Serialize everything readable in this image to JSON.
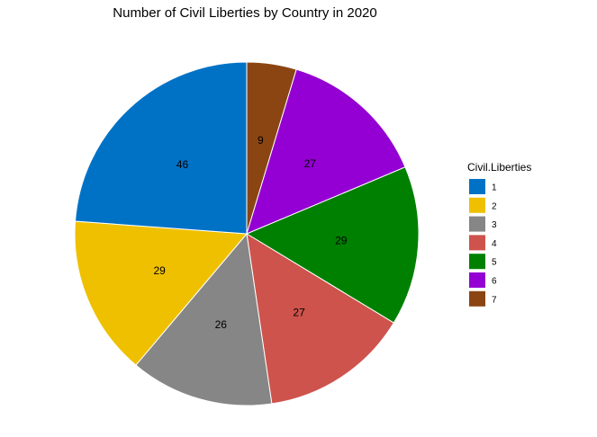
{
  "chart_data": {
    "type": "pie",
    "title": "Number of Civil Liberties by Country in 2020",
    "legend": {
      "title": "Civil.Liberties",
      "position": "right"
    },
    "start_angle": "12 o'clock",
    "direction": "clockwise",
    "slice_order": [
      "7",
      "6",
      "5",
      "4",
      "3",
      "2",
      "1"
    ],
    "slices": [
      {
        "label": "1",
        "value": 46,
        "color": "#0072C6"
      },
      {
        "label": "2",
        "value": 29,
        "color": "#EFC000"
      },
      {
        "label": "3",
        "value": 26,
        "color": "#868686"
      },
      {
        "label": "4",
        "value": 27,
        "color": "#CD534C"
      },
      {
        "label": "5",
        "value": 29,
        "color": "#008000"
      },
      {
        "label": "6",
        "value": 27,
        "color": "#9400D3"
      },
      {
        "label": "7",
        "value": 9,
        "color": "#8B4513"
      }
    ]
  }
}
